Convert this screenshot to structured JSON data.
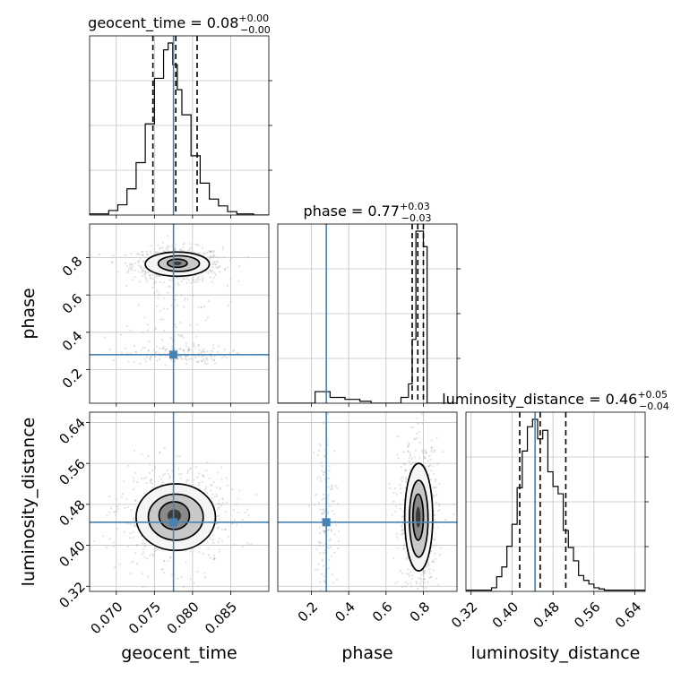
{
  "chart_data": {
    "type": "corner",
    "parameters": [
      "geocent_time",
      "phase",
      "luminosity_distance"
    ],
    "colors": {
      "truth": "#4682b4",
      "hist": "#000000",
      "grid": "#c0c0c0",
      "samples": "#a9a9a9"
    },
    "grid": true,
    "titles": [
      {
        "label": "geocent_time = 0.08",
        "sup": "+0.00",
        "sub": "−0.00"
      },
      {
        "label": "phase = 0.77",
        "sup": "+0.03",
        "sub": "−0.03"
      },
      {
        "label": "luminosity_distance = 0.46",
        "sup": "+0.05",
        "sub": "−0.04"
      }
    ],
    "ranges": [
      [
        0.0665,
        0.09
      ],
      [
        0.02,
        0.98
      ],
      [
        0.31,
        0.66
      ]
    ],
    "ticks": [
      {
        "values": [
          0.07,
          0.075,
          0.08,
          0.085
        ],
        "labels": [
          "0.070",
          "0.075",
          "0.080",
          "0.085"
        ]
      },
      {
        "values": [
          0.2,
          0.4,
          0.6,
          0.8
        ],
        "labels": [
          "0.2",
          "0.4",
          "0.6",
          "0.8"
        ]
      },
      {
        "values": [
          0.32,
          0.4,
          0.48,
          0.56,
          0.64
        ],
        "labels": [
          "0.32",
          "0.40",
          "0.48",
          "0.56",
          "0.64"
        ]
      }
    ],
    "truths": [
      0.0775,
      0.28,
      0.445
    ],
    "quantiles": [
      [
        0.0748,
        0.0778,
        0.0806
      ],
      [
        0.74,
        0.77,
        0.8
      ],
      [
        0.415,
        0.455,
        0.505
      ]
    ],
    "histograms": [
      {
        "edges": [
          0.0665,
          0.069,
          0.0702,
          0.0714,
          0.0726,
          0.0738,
          0.075,
          0.0762,
          0.0768,
          0.0774,
          0.078,
          0.0786,
          0.0798,
          0.081,
          0.0822,
          0.0834,
          0.0846,
          0.0858,
          0.088,
          0.09
        ],
        "counts": [
          1,
          4,
          9,
          23,
          46,
          80,
          120,
          145,
          151,
          132,
          110,
          88,
          52,
          28,
          14,
          8,
          3,
          1,
          0
        ]
      },
      {
        "edges": [
          0.02,
          0.22,
          0.3,
          0.38,
          0.46,
          0.52,
          0.68,
          0.72,
          0.74,
          0.76,
          0.78,
          0.8,
          0.82,
          0.84,
          0.98
        ],
        "counts": [
          0,
          6,
          3,
          2,
          1,
          0,
          3,
          10,
          33,
          89,
          89,
          81,
          0,
          0
        ]
      },
      {
        "edges": [
          0.31,
          0.36,
          0.37,
          0.38,
          0.39,
          0.4,
          0.41,
          0.42,
          0.43,
          0.44,
          0.45,
          0.46,
          0.47,
          0.48,
          0.49,
          0.5,
          0.51,
          0.52,
          0.53,
          0.54,
          0.55,
          0.56,
          0.57,
          0.58,
          0.66
        ],
        "counts": [
          1,
          3,
          12,
          20,
          37,
          55,
          85,
          115,
          135,
          141,
          125,
          132,
          98,
          86,
          80,
          50,
          36,
          25,
          13,
          9,
          6,
          3,
          2,
          1
        ]
      }
    ],
    "contours_2d": [
      {
        "x": "geocent_time",
        "y": "phase",
        "levels": [
          {
            "cx": 0.078,
            "cy": 0.765,
            "rx": 0.0042,
            "ry": 0.065
          },
          {
            "cx": 0.0782,
            "cy": 0.768,
            "rx": 0.0027,
            "ry": 0.042
          },
          {
            "cx": 0.078,
            "cy": 0.77,
            "rx": 0.0013,
            "ry": 0.022
          }
        ]
      },
      {
        "x": "geocent_time",
        "y": "luminosity_distance",
        "levels": [
          {
            "cx": 0.0778,
            "cy": 0.455,
            "rx": 0.0052,
            "ry": 0.065
          },
          {
            "cx": 0.0778,
            "cy": 0.455,
            "rx": 0.0036,
            "ry": 0.045
          },
          {
            "cx": 0.0776,
            "cy": 0.458,
            "rx": 0.002,
            "ry": 0.027
          }
        ]
      },
      {
        "x": "phase",
        "y": "luminosity_distance",
        "levels": [
          {
            "cx": 0.775,
            "cy": 0.455,
            "rx": 0.075,
            "ry": 0.105
          },
          {
            "cx": 0.775,
            "cy": 0.452,
            "rx": 0.05,
            "ry": 0.075
          },
          {
            "cx": 0.772,
            "cy": 0.455,
            "rx": 0.028,
            "ry": 0.045
          }
        ]
      }
    ]
  }
}
